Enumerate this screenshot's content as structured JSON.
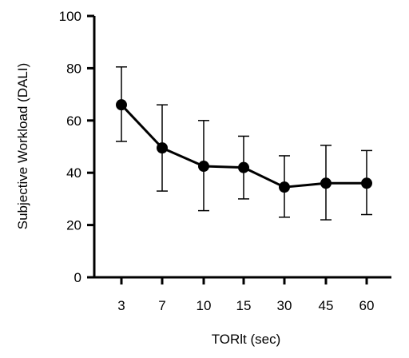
{
  "chart_data": {
    "type": "line",
    "title": "",
    "xlabel": "TORlt (sec)",
    "ylabel": "Subjective Workload (DALI)",
    "categories": [
      "3",
      "7",
      "10",
      "15",
      "30",
      "45",
      "60"
    ],
    "ylim": [
      0,
      100
    ],
    "yticks": [
      0,
      20,
      40,
      60,
      80,
      100
    ],
    "grid": false,
    "legend": "none",
    "series": [
      {
        "values": [
          66,
          49.5,
          42.5,
          42,
          34.5,
          36,
          36
        ],
        "error_low": [
          52,
          33,
          25.5,
          30,
          23,
          22,
          24
        ],
        "error_high": [
          80.5,
          66,
          60,
          54,
          46.5,
          50.5,
          48.5
        ],
        "color": "#000000"
      }
    ]
  }
}
